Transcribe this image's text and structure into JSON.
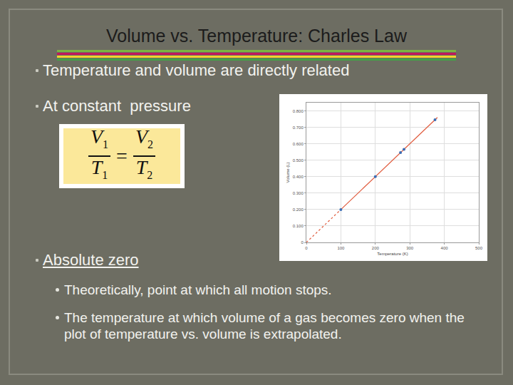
{
  "slide": {
    "title": "Volume vs. Temperature:  Charles Law",
    "bullets": [
      {
        "text": "Temperature and volume are directly related"
      },
      {
        "text": "At constant  pressure"
      },
      {
        "text": "Absolute zero",
        "underline": true,
        "sub_bullets": [
          "Theoretically, point at which all motion stops.",
          "The temperature at which volume of a gas becomes zero when the plot of temperature vs. volume is extrapolated."
        ]
      }
    ],
    "equation": {
      "left": {
        "top": {
          "symbol": "V",
          "sub": "1"
        },
        "bottom": {
          "symbol": "T",
          "sub": "1"
        }
      },
      "sign": "=",
      "right": {
        "top": {
          "symbol": "V",
          "sub": "2"
        },
        "bottom": {
          "symbol": "T",
          "sub": "2"
        }
      }
    }
  },
  "chart_data": {
    "type": "scatter",
    "x_label": "Temperature (K)",
    "y_label": "Volume (L)",
    "xlim": [
      0,
      500
    ],
    "xticks": [
      0,
      100,
      200,
      300,
      400,
      500
    ],
    "ylim": [
      0,
      0.85
    ],
    "yticks": [
      0,
      {
        "value": 0.1,
        "label": "0.100"
      },
      {
        "value": 0.2,
        "label": "0.200"
      },
      {
        "value": 0.3,
        "label": "0.300"
      },
      {
        "value": 0.4,
        "label": "0.400"
      },
      {
        "value": 0.5,
        "label": "0.500"
      },
      {
        "value": 0.6,
        "label": "0.600"
      },
      {
        "value": 0.7,
        "label": "0.700"
      },
      {
        "value": 0.8,
        "label": "0.800"
      }
    ],
    "grid": true,
    "series": [
      {
        "type": "line",
        "line_style": "dotted",
        "color": "#e05a3c",
        "x": [
          0,
          100
        ],
        "values": [
          0,
          0.2
        ]
      },
      {
        "type": "line",
        "line_style": "solid",
        "color": "#e05a3c",
        "x": [
          100,
          380
        ],
        "values": [
          0.2,
          0.76
        ]
      },
      {
        "type": "scatter",
        "marker": "circle",
        "color": "#3a6db5",
        "x": [
          100,
          200,
          273,
          283,
          373
        ],
        "values": [
          0.2,
          0.4,
          0.546,
          0.566,
          0.746
        ]
      }
    ]
  }
}
